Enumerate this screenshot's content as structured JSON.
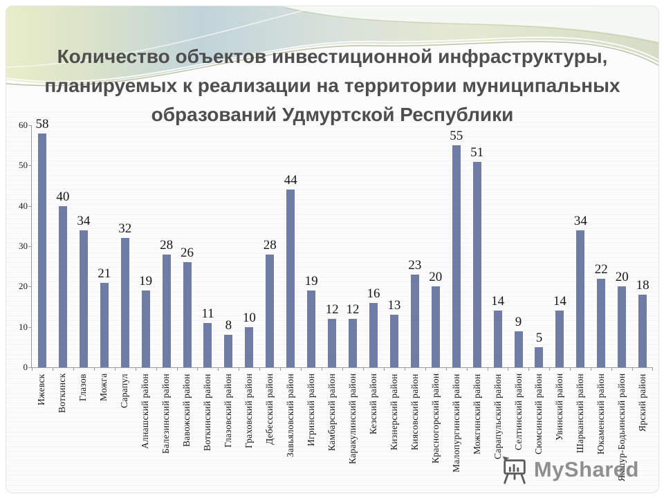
{
  "slide": {
    "title_lines": [
      "Количество объектов инвестиционной инфраструктуры,",
      "планируемых к реализации на территории муниципальных",
      "образований Удмуртской Республики"
    ]
  },
  "watermark": {
    "label": "MyShared",
    "icon": "easel-chart-icon"
  },
  "colors": {
    "bar": "#6F7DA6",
    "axis": "#9a9a9a",
    "title_text": "#4e4e4e",
    "label_text": "#161616",
    "watermark_text": "#868686"
  },
  "chart_data": {
    "type": "bar",
    "title": "Количество объектов инвестиционной инфраструктуры, планируемых к реализации на территории муниципальных образований Удмуртской Республики",
    "xlabel": "",
    "ylabel": "",
    "categories": [
      "Ижевск",
      "Воткинск",
      "Глазов",
      "Можга",
      "Сарапул",
      "Алнашский район",
      "Балезинский район",
      "Вавожский район",
      "Воткинский район",
      "Глазовский район",
      "Граховский район",
      "Дебесский район",
      "Завьяловский район",
      "Игринский район",
      "Камбарский район",
      "Каракулинский район",
      "Кезский район",
      "Кизнерский район",
      "Киясовский район",
      "Красногорский район",
      "Малопургинский район",
      "Можгинский район",
      "Сарапульский район",
      "Селтинский район",
      "Сюмсинский район",
      "Увинский район",
      "Шарканский район",
      "Юкаменский район",
      "Якшур-Бодьинский район",
      "Ярский район"
    ],
    "values": [
      58,
      40,
      34,
      21,
      32,
      19,
      28,
      26,
      11,
      8,
      10,
      28,
      44,
      19,
      12,
      12,
      16,
      13,
      23,
      20,
      55,
      51,
      14,
      9,
      5,
      14,
      34,
      22,
      20,
      18
    ],
    "ylim": [
      0,
      60
    ],
    "ytick_step": 10,
    "yticks": [
      "0",
      "10",
      "20",
      "30",
      "40",
      "50",
      "60"
    ],
    "grid": false,
    "legend": false,
    "bar_color": "#6F7DA6",
    "value_labels": true,
    "category_label_rotation": -90
  }
}
